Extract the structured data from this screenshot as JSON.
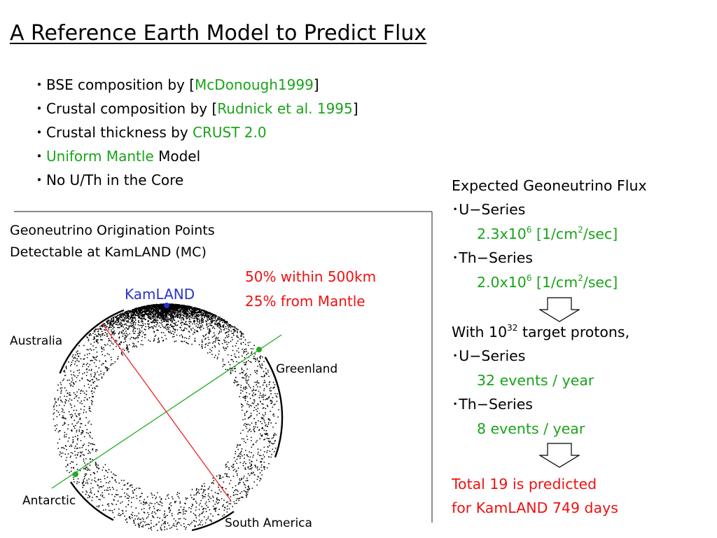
{
  "title": "A Reference Earth Model to Predict Flux",
  "bullets": [
    {
      "pre": "・BSE composition by [",
      "hl": "McDonough1999",
      "post": "]"
    },
    {
      "pre": "・Crustal composition by [",
      "hl": "Rudnick et al. 1995",
      "post": "]"
    },
    {
      "pre": "・Crustal thickness by ",
      "hl": "CRUST 2.0",
      "post": ""
    },
    {
      "pre": "・",
      "hl": "Uniform Mantle",
      "post": " Model"
    },
    {
      "pre": "・No U/Th in the Core",
      "hl": "",
      "post": ""
    }
  ],
  "figure": {
    "caption_line1": "Geoneutrino Origination Points",
    "caption_line2": "Detectable at KamLAND (MC)",
    "stat1": "50% within 500km",
    "stat2": "25% from Mantle",
    "kamland": "KamLAND",
    "regions": {
      "australia": "Australia",
      "greenland": "Greenland",
      "antarctic": "Antarctic",
      "south_america": "South America"
    },
    "colors": {
      "green_line": "#22aa22",
      "red_line": "#ee2222",
      "kamland_dot": "#2233cc"
    }
  },
  "flux": {
    "heading": "Expected Geoneutrino Flux",
    "u_label": "･U−Series",
    "u_value_base": "2.3x10",
    "u_value_exp": "6",
    "u_unit_pre": " [1/cm",
    "u_unit_exp": "2",
    "u_unit_post": "/sec]",
    "th_label": "･Th−Series",
    "th_value_base": "2.0x10",
    "th_value_exp": "6",
    "th_unit_pre": " [1/cm",
    "th_unit_exp": "2",
    "th_unit_post": "/sec]"
  },
  "events": {
    "with_pre": "With 10",
    "with_exp": "32",
    "with_post": " target protons,",
    "u_label": "･U−Series",
    "u_events": "32 events / year",
    "th_label": "･Th−Series",
    "th_events": "8 events / year"
  },
  "total": {
    "line1": "Total 19 is predicted",
    "line2": "for KamLAND 749 days"
  }
}
